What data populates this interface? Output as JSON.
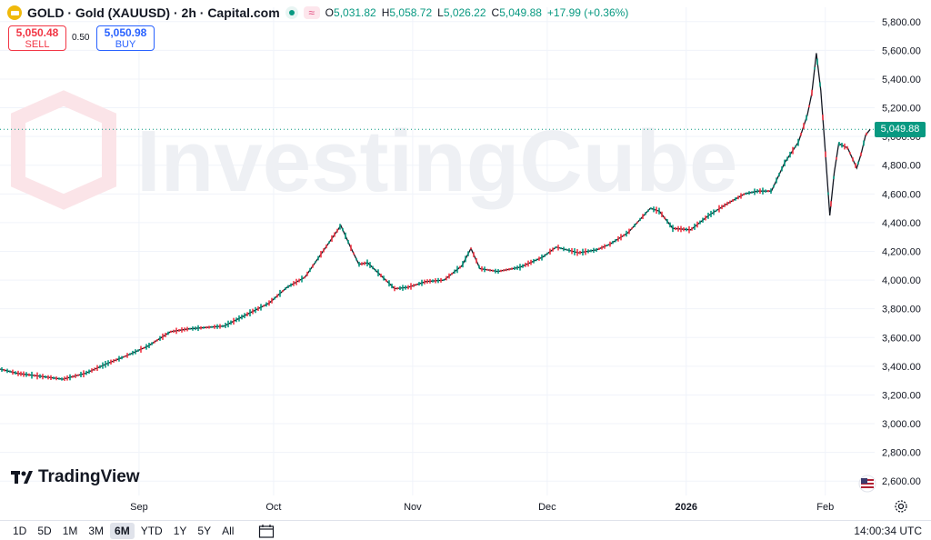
{
  "header": {
    "symbol": "GOLD · Gold (XAUUSD) · 2h · Capital.com",
    "open_label": "O",
    "open": "5,031.82",
    "high_label": "H",
    "high": "5,058.72",
    "low_label": "L",
    "low": "5,026.22",
    "close_label": "C",
    "close": "5,049.88",
    "change": "+17.99 (+0.36%)"
  },
  "trade": {
    "sell_price": "5,050.48",
    "sell_label": "SELL",
    "spread": "0.50",
    "buy_price": "5,050.98",
    "buy_label": "BUY"
  },
  "watermark": "InvestingCube",
  "logo_text": "TradingView",
  "timeframes": [
    "1D",
    "5D",
    "1M",
    "3M",
    "6M",
    "YTD",
    "1Y",
    "5Y",
    "All"
  ],
  "active_timeframe": "6M",
  "clock": "14:00:34 UTC",
  "colors": {
    "up": "#089981",
    "down": "#f23645",
    "grid": "#f0f3fa"
  },
  "icons": [
    "gold-icon",
    "market-open-icon",
    "wave-icon",
    "calendar-icon",
    "flag-icon",
    "gear-icon"
  ],
  "chart_data": {
    "type": "line",
    "ylim": [
      2500,
      5900
    ],
    "y_ticks": [
      "2,600.00",
      "2,800.00",
      "3,000.00",
      "3,200.00",
      "3,400.00",
      "3,600.00",
      "3,800.00",
      "4,000.00",
      "4,200.00",
      "4,400.00",
      "4,600.00",
      "4,800.00",
      "5,000.00",
      "5,200.00",
      "5,400.00",
      "5,600.00",
      "5,800.00"
    ],
    "x_labels": [
      "Sep",
      "Oct",
      "Nov",
      "Dec",
      "2026",
      "Feb"
    ],
    "x_label_dates": [
      "2025-09-01",
      "2025-10-01",
      "2025-11-01",
      "2025-12-01",
      "2026-01-01",
      "2026-02-01"
    ],
    "last_price": "5,049.88",
    "series": [
      {
        "x": [
          "2025-08-01",
          "2025-08-05",
          "2025-08-10",
          "2025-08-15",
          "2025-08-20",
          "2025-08-25",
          "2025-08-29",
          "2025-09-03",
          "2025-09-08",
          "2025-09-12",
          "2025-09-16",
          "2025-09-20",
          "2025-09-25",
          "2025-09-30",
          "2025-10-04",
          "2025-10-08",
          "2025-10-12",
          "2025-10-16",
          "2025-10-18",
          "2025-10-20",
          "2025-10-22",
          "2025-10-24",
          "2025-10-28",
          "2025-10-31",
          "2025-11-04",
          "2025-11-08",
          "2025-11-12",
          "2025-11-14",
          "2025-11-16",
          "2025-11-20",
          "2025-11-25",
          "2025-11-30",
          "2025-12-03",
          "2025-12-08",
          "2025-12-12",
          "2025-12-15",
          "2025-12-19",
          "2025-12-24",
          "2025-12-26",
          "2025-12-29",
          "2026-01-02",
          "2026-01-06",
          "2026-01-10",
          "2026-01-14",
          "2026-01-17",
          "2026-01-20",
          "2026-01-23",
          "2026-01-26",
          "2026-01-28",
          "2026-01-29",
          "2026-01-30",
          "2026-01-31",
          "2026-02-01",
          "2026-02-02",
          "2026-02-03",
          "2026-02-04",
          "2026-02-06",
          "2026-02-08",
          "2026-02-09",
          "2026-02-10",
          "2026-02-11"
        ],
        "y": [
          3380,
          3350,
          3330,
          3310,
          3350,
          3420,
          3470,
          3540,
          3640,
          3660,
          3670,
          3680,
          3760,
          3840,
          3950,
          4020,
          4200,
          4380,
          4240,
          4110,
          4120,
          4060,
          3940,
          3950,
          3990,
          4000,
          4100,
          4220,
          4080,
          4060,
          4090,
          4160,
          4230,
          4190,
          4210,
          4250,
          4330,
          4500,
          4480,
          4360,
          4350,
          4450,
          4530,
          4600,
          4620,
          4620,
          4820,
          4960,
          5150,
          5300,
          5580,
          5320,
          4900,
          4450,
          4750,
          4950,
          4920,
          4780,
          4880,
          5010,
          5049.88
        ]
      }
    ]
  }
}
